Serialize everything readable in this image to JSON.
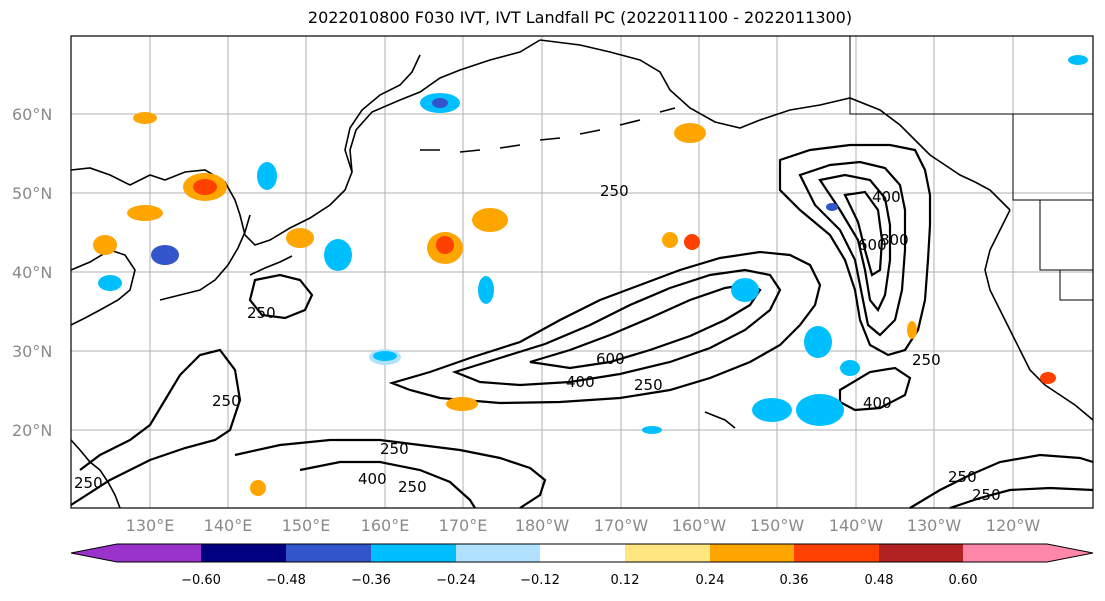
{
  "title": "2022010800 F030 IVT, IVT Landfall PC (2022011100 - 2022011300)",
  "map": {
    "lat_labels": [
      "60°N",
      "50°N",
      "40°N",
      "30°N",
      "20°N"
    ],
    "lon_labels": [
      "130°E",
      "140°E",
      "150°E",
      "160°E",
      "170°E",
      "180°W",
      "170°W",
      "160°W",
      "150°W",
      "140°W",
      "130°W",
      "120°W"
    ],
    "contour_labels": [
      "250",
      "400",
      "600",
      "800",
      "600",
      "400",
      "250",
      "250",
      "250",
      "250",
      "400",
      "250",
      "250",
      "400",
      "250",
      "250",
      "250"
    ]
  },
  "colorbar": {
    "colors": [
      "#9933cc",
      "#000080",
      "#3355cc",
      "#00bfff",
      "#b0e2ff",
      "#ffffff",
      "#ffe680",
      "#ffa500",
      "#ff4000",
      "#b22222",
      "#ff88aa"
    ],
    "tick_labels": [
      "−0.60",
      "−0.48",
      "−0.36",
      "−0.24",
      "−0.12",
      "0.12",
      "0.24",
      "0.36",
      "0.48",
      "0.60"
    ]
  }
}
